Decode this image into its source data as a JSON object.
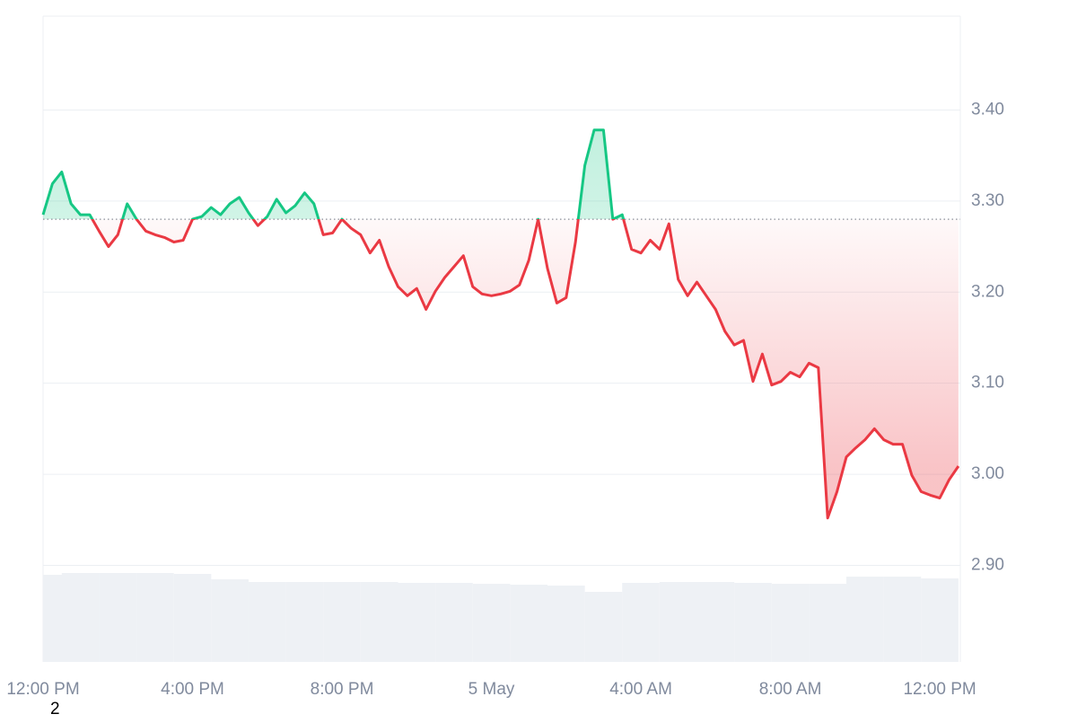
{
  "chart_data": {
    "type": "line",
    "x": [
      0,
      0.25,
      0.5,
      0.75,
      1,
      1.25,
      1.5,
      1.75,
      2,
      2.25,
      2.5,
      2.75,
      3,
      3.25,
      3.5,
      3.75,
      4,
      4.25,
      4.5,
      4.75,
      5,
      5.25,
      5.5,
      5.75,
      6,
      6.25,
      6.5,
      6.75,
      7,
      7.25,
      7.5,
      7.75,
      8,
      8.25,
      8.5,
      8.75,
      9,
      9.25,
      9.5,
      9.75,
      10,
      10.25,
      10.5,
      10.75,
      11,
      11.25,
      11.5,
      11.75,
      12,
      12.25,
      12.5,
      12.75,
      13,
      13.25,
      13.5,
      13.75,
      14,
      14.25,
      14.5,
      14.75,
      15,
      15.25,
      15.5,
      15.75,
      16,
      16.25,
      16.5,
      16.75,
      17,
      17.25,
      17.5,
      17.75,
      18,
      18.25,
      18.5,
      18.75,
      19,
      19.25,
      19.5,
      19.75,
      20,
      20.25,
      20.5,
      20.75,
      21,
      21.25,
      21.5,
      21.75,
      22,
      22.25,
      22.5,
      22.75,
      23,
      23.25,
      23.5,
      23.75,
      24,
      24.25,
      24.5
    ],
    "series": [
      {
        "values": [
          3.285,
          3.319,
          3.332,
          3.297,
          3.285,
          3.285,
          3.267,
          3.25,
          3.263,
          3.297,
          3.28,
          3.267,
          3.263,
          3.26,
          3.255,
          3.257,
          3.28,
          3.283,
          3.293,
          3.285,
          3.297,
          3.304,
          3.287,
          3.273,
          3.283,
          3.302,
          3.287,
          3.295,
          3.309,
          3.297,
          3.263,
          3.265,
          3.28,
          3.27,
          3.263,
          3.243,
          3.257,
          3.228,
          3.206,
          3.196,
          3.204,
          3.181,
          3.201,
          3.216,
          3.228,
          3.24,
          3.206,
          3.198,
          3.196,
          3.198,
          3.201,
          3.208,
          3.235,
          3.28,
          3.226,
          3.188,
          3.194,
          3.255,
          3.339,
          3.378,
          3.378,
          3.28,
          3.285,
          3.247,
          3.243,
          3.257,
          3.247,
          3.275,
          3.214,
          3.196,
          3.211,
          3.196,
          3.181,
          3.157,
          3.142,
          3.147,
          3.102,
          3.132,
          3.098,
          3.102,
          3.112,
          3.107,
          3.122,
          3.117,
          2.952,
          2.981,
          3.019,
          3.029,
          3.038,
          3.05,
          3.038,
          3.033,
          3.033,
          2.999,
          2.981,
          2.977,
          2.974,
          2.994,
          3.009
        ],
        "up_color": "#16c784",
        "down_color": "#ea3943"
      }
    ],
    "baseline": 3.28,
    "volume": {
      "x": [
        0,
        1,
        2,
        3,
        4,
        5,
        6,
        7,
        8,
        9,
        10,
        11,
        12,
        13,
        14,
        15,
        16,
        17,
        18,
        19,
        20,
        21,
        22,
        23,
        24
      ],
      "values": [
        97,
        99,
        99,
        99,
        98,
        92,
        89,
        89,
        89,
        89,
        88,
        88,
        87,
        86,
        85,
        78,
        88,
        89,
        89,
        88,
        87,
        87,
        95,
        95,
        93
      ],
      "lim": [
        0,
        100
      ],
      "color": "#eef1f5"
    },
    "xlim": [
      0,
      24.55
    ],
    "ylim": [
      2.794,
      3.503
    ],
    "xticks": [
      {
        "value": 0,
        "label": "12:00 PM"
      },
      {
        "value": 4,
        "label": "4:00 PM"
      },
      {
        "value": 8,
        "label": "8:00 PM"
      },
      {
        "value": 12,
        "label": "5 May"
      },
      {
        "value": 16,
        "label": "4:00 AM"
      },
      {
        "value": 20,
        "label": "8:00 AM"
      },
      {
        "value": 24,
        "label": "12:00 PM"
      }
    ],
    "yticks": [
      {
        "value": 2.9,
        "label": "2.90"
      },
      {
        "value": 3.0,
        "label": "3.00"
      },
      {
        "value": 3.1,
        "label": "3.10"
      },
      {
        "value": 3.2,
        "label": "3.20"
      },
      {
        "value": 3.3,
        "label": "3.30"
      },
      {
        "value": 3.4,
        "label": "3.40"
      }
    ],
    "grid": true,
    "footnote": "2"
  }
}
